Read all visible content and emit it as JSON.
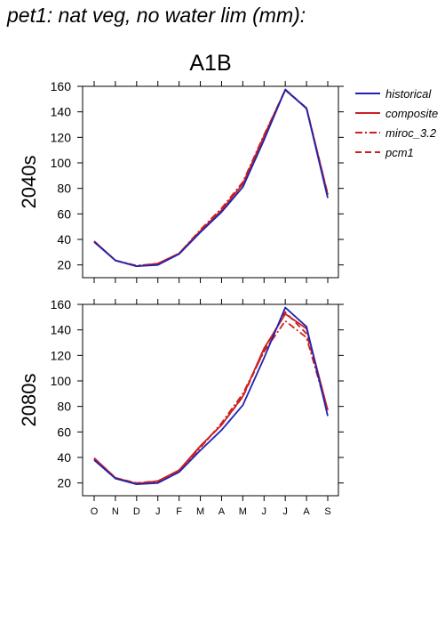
{
  "figure": {
    "title": "pet1: nat veg, no water lim (mm):",
    "scenario": "A1B"
  },
  "legend": [
    {
      "name": "historical",
      "color": "#1f23b4",
      "dash": "solid"
    },
    {
      "name": "composite",
      "color": "#cc2020",
      "dash": "solid"
    },
    {
      "name": "miroc_3.2",
      "color": "#cc2020",
      "dash": "dashdot"
    },
    {
      "name": "pcm1",
      "color": "#cc2020",
      "dash": "dashed"
    }
  ],
  "chart_data": [
    {
      "type": "line",
      "panel_label": "2040s",
      "categories": [
        "O",
        "N",
        "D",
        "J",
        "F",
        "M",
        "A",
        "M",
        "J",
        "J",
        "A",
        "S"
      ],
      "ylim": [
        10,
        160
      ],
      "yticks": [
        20,
        40,
        60,
        80,
        100,
        120,
        140,
        160
      ],
      "series": [
        {
          "name": "historical",
          "values": [
            38,
            23.5,
            19,
            20,
            28.5,
            45.5,
            61.5,
            81,
            118,
            157.5,
            142.5,
            72.5
          ]
        },
        {
          "name": "composite",
          "values": [
            38.5,
            23.5,
            19,
            21,
            29,
            46.5,
            63,
            83.5,
            121,
            157,
            143,
            75
          ]
        },
        {
          "name": "miroc_3.2",
          "values": [
            38.5,
            23.5,
            19.5,
            21,
            29,
            47.5,
            64.5,
            85,
            122,
            157,
            143,
            75.5
          ]
        },
        {
          "name": "pcm1",
          "values": [
            38.5,
            23.5,
            19,
            21,
            29,
            46.5,
            63,
            83.5,
            121,
            157.5,
            143,
            75.5
          ]
        }
      ]
    },
    {
      "type": "line",
      "panel_label": "2080s",
      "categories": [
        "O",
        "N",
        "D",
        "J",
        "F",
        "M",
        "A",
        "M",
        "J",
        "J",
        "A",
        "S"
      ],
      "ylim": [
        10,
        160
      ],
      "yticks": [
        20,
        40,
        60,
        80,
        100,
        120,
        140,
        160
      ],
      "series": [
        {
          "name": "historical",
          "values": [
            38,
            23.5,
            19,
            20,
            28.5,
            45.5,
            61.5,
            81,
            118,
            157.5,
            142.5,
            72.5
          ]
        },
        {
          "name": "composite",
          "values": [
            39.5,
            24,
            19.5,
            21.5,
            30,
            49,
            65.5,
            88,
            125.5,
            152.5,
            141,
            77
          ]
        },
        {
          "name": "miroc_3.2",
          "values": [
            38.5,
            23.5,
            19.5,
            21,
            30,
            47.5,
            67,
            90,
            123,
            147,
            134,
            76
          ]
        },
        {
          "name": "pcm1",
          "values": [
            39.5,
            24,
            20,
            21.5,
            29.5,
            48.5,
            65.5,
            87.5,
            124,
            154,
            137,
            77
          ]
        }
      ]
    }
  ]
}
